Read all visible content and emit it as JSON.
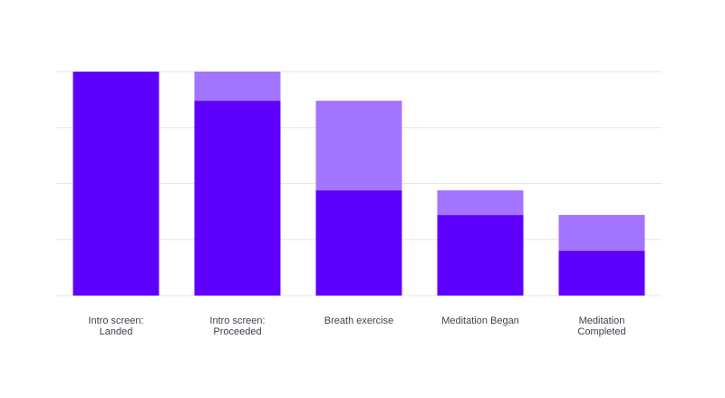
{
  "chart_data": {
    "type": "bar",
    "stacked": true,
    "title": "",
    "xlabel": "",
    "ylabel": "",
    "ylim": [
      0,
      100
    ],
    "grid": true,
    "legend": "none",
    "categories": [
      [
        "Intro screen:",
        "Landed"
      ],
      [
        "Intro screen:",
        "Proceeded"
      ],
      [
        "Breath exercise"
      ],
      [
        "Meditation Began"
      ],
      [
        "Meditation",
        "Completed"
      ]
    ],
    "series": [
      {
        "values": [
          100,
          87,
          47,
          36,
          20
        ],
        "color": "#5f00ff"
      },
      {
        "values": [
          0,
          13,
          40,
          11,
          16
        ],
        "color": "#a374ff"
      }
    ]
  }
}
